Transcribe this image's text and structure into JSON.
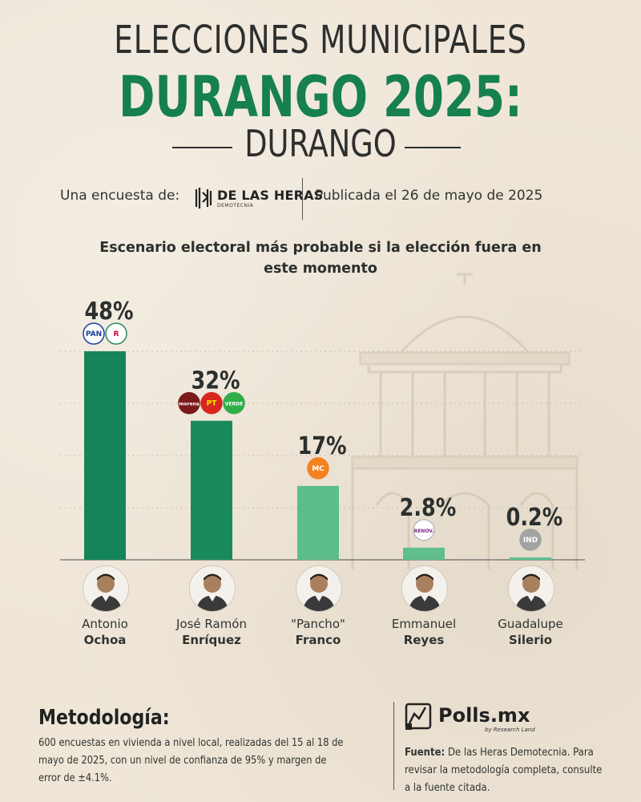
{
  "header": {
    "title_line1": "ELECCIONES MUNICIPALES",
    "title_line2": "DURANGO 2025:",
    "title_line3": "DURANGO"
  },
  "source": {
    "label": "Una encuesta de:",
    "pollster_name": "DE LAS HERAS",
    "pollster_sub": "DEMOTECNIA",
    "published": "Publicada el 26 de mayo de 2025"
  },
  "chart_data": {
    "type": "bar",
    "title": "Escenario electoral más probable si la elección fuera en este momento",
    "categories": [
      "Antonio Ochoa",
      "José Ramón Enríquez",
      "\"Pancho\" Franco",
      "Emmanuel Reyes",
      "Guadalupe Silerio"
    ],
    "values": [
      48,
      32,
      17,
      2.8,
      0.2
    ],
    "value_labels": [
      "48%",
      "32%",
      "17%",
      "2.8%",
      "0.2%"
    ],
    "ylim": [
      0,
      60
    ],
    "grid": true,
    "candidates": [
      {
        "first": "Antonio",
        "last": "Ochoa",
        "parties": [
          "PAN",
          "PRI"
        ],
        "color": "#16845a"
      },
      {
        "first": "José Ramón",
        "last": "Enríquez",
        "parties": [
          "morena",
          "PT",
          "VERDE"
        ],
        "color": "#1a8a5d"
      },
      {
        "first": "\"Pancho\"",
        "last": "Franco",
        "parties": [
          "MC"
        ],
        "color": "#5dbc8c"
      },
      {
        "first": "Emmanuel",
        "last": "Reyes",
        "parties": [
          "RENOVACIÓN"
        ],
        "color": "#60be8f"
      },
      {
        "first": "Guadalupe",
        "last": "Silerio",
        "parties": [
          "IND"
        ],
        "color": "#62c092"
      }
    ]
  },
  "methodology": {
    "title": "Metodología:",
    "text": "600 encuestas en vivienda a nivel local, realizadas del 15 al 18 de mayo de 2025, con un nivel de confianza de 95% y margen de error de ±4.1%."
  },
  "footer": {
    "brand": "Polls.mx",
    "brand_sub": "by Research Land",
    "fuente_label": "Fuente:",
    "fuente_text": "De las Heras Demotecnia. Para revisar la metodología completa, consulte a la fuente citada."
  },
  "colors": {
    "accent_green": "#16804f",
    "background": "#efe6d8"
  }
}
